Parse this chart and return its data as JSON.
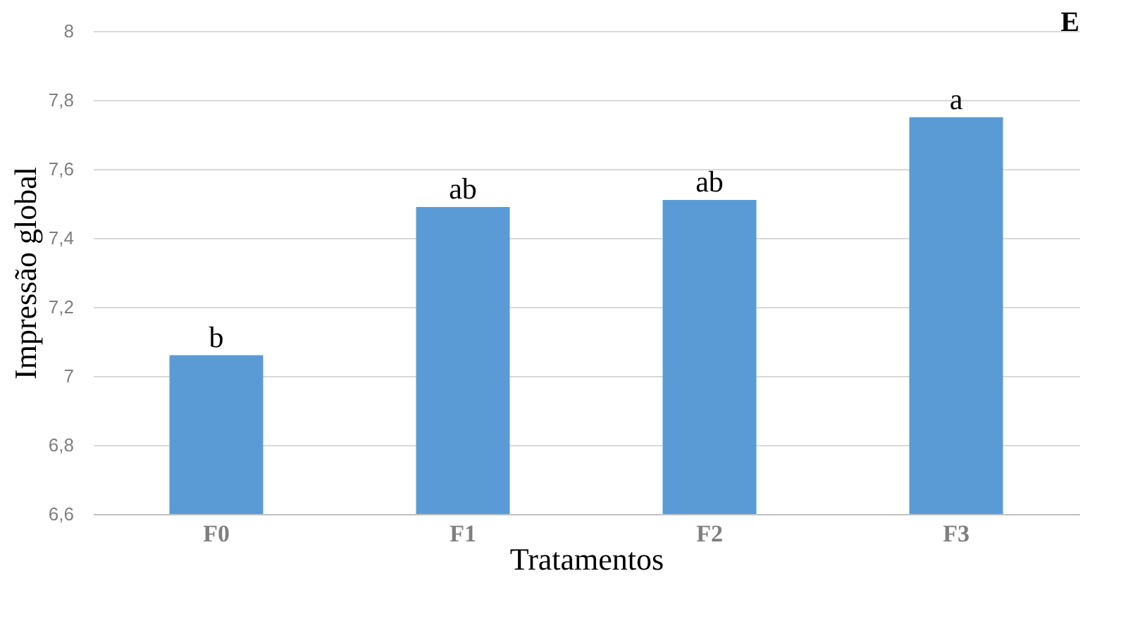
{
  "chart_data": {
    "type": "bar",
    "xlabel": "Tratamentos",
    "ylabel": "Impressão global",
    "categories": [
      "F0",
      "F1",
      "F2",
      "F3"
    ],
    "values": [
      7.06,
      7.49,
      7.51,
      7.75
    ],
    "color": "#5b9bd5",
    "ylim": [
      6.6,
      8
    ],
    "yticks": [
      {
        "value": 6.6,
        "label": "6,6"
      },
      {
        "value": 6.8,
        "label": "6,8"
      },
      7,
      {
        "value": 7.2,
        "label": "7,2"
      },
      {
        "value": 7.4,
        "label": "7,4"
      },
      {
        "value": 7.6,
        "label": "7,6"
      },
      {
        "value": 7.8,
        "label": "7,8"
      },
      8
    ],
    "grid": "y",
    "annotations": [
      "E",
      {
        "text": "b",
        "x": "F0",
        "y": 7.06
      },
      {
        "text": "ab",
        "x": "F1",
        "y": 7.49
      },
      {
        "text": "ab",
        "x": "F2",
        "y": 7.51
      },
      {
        "text": "a",
        "x": "F3",
        "y": 7.75
      }
    ]
  }
}
